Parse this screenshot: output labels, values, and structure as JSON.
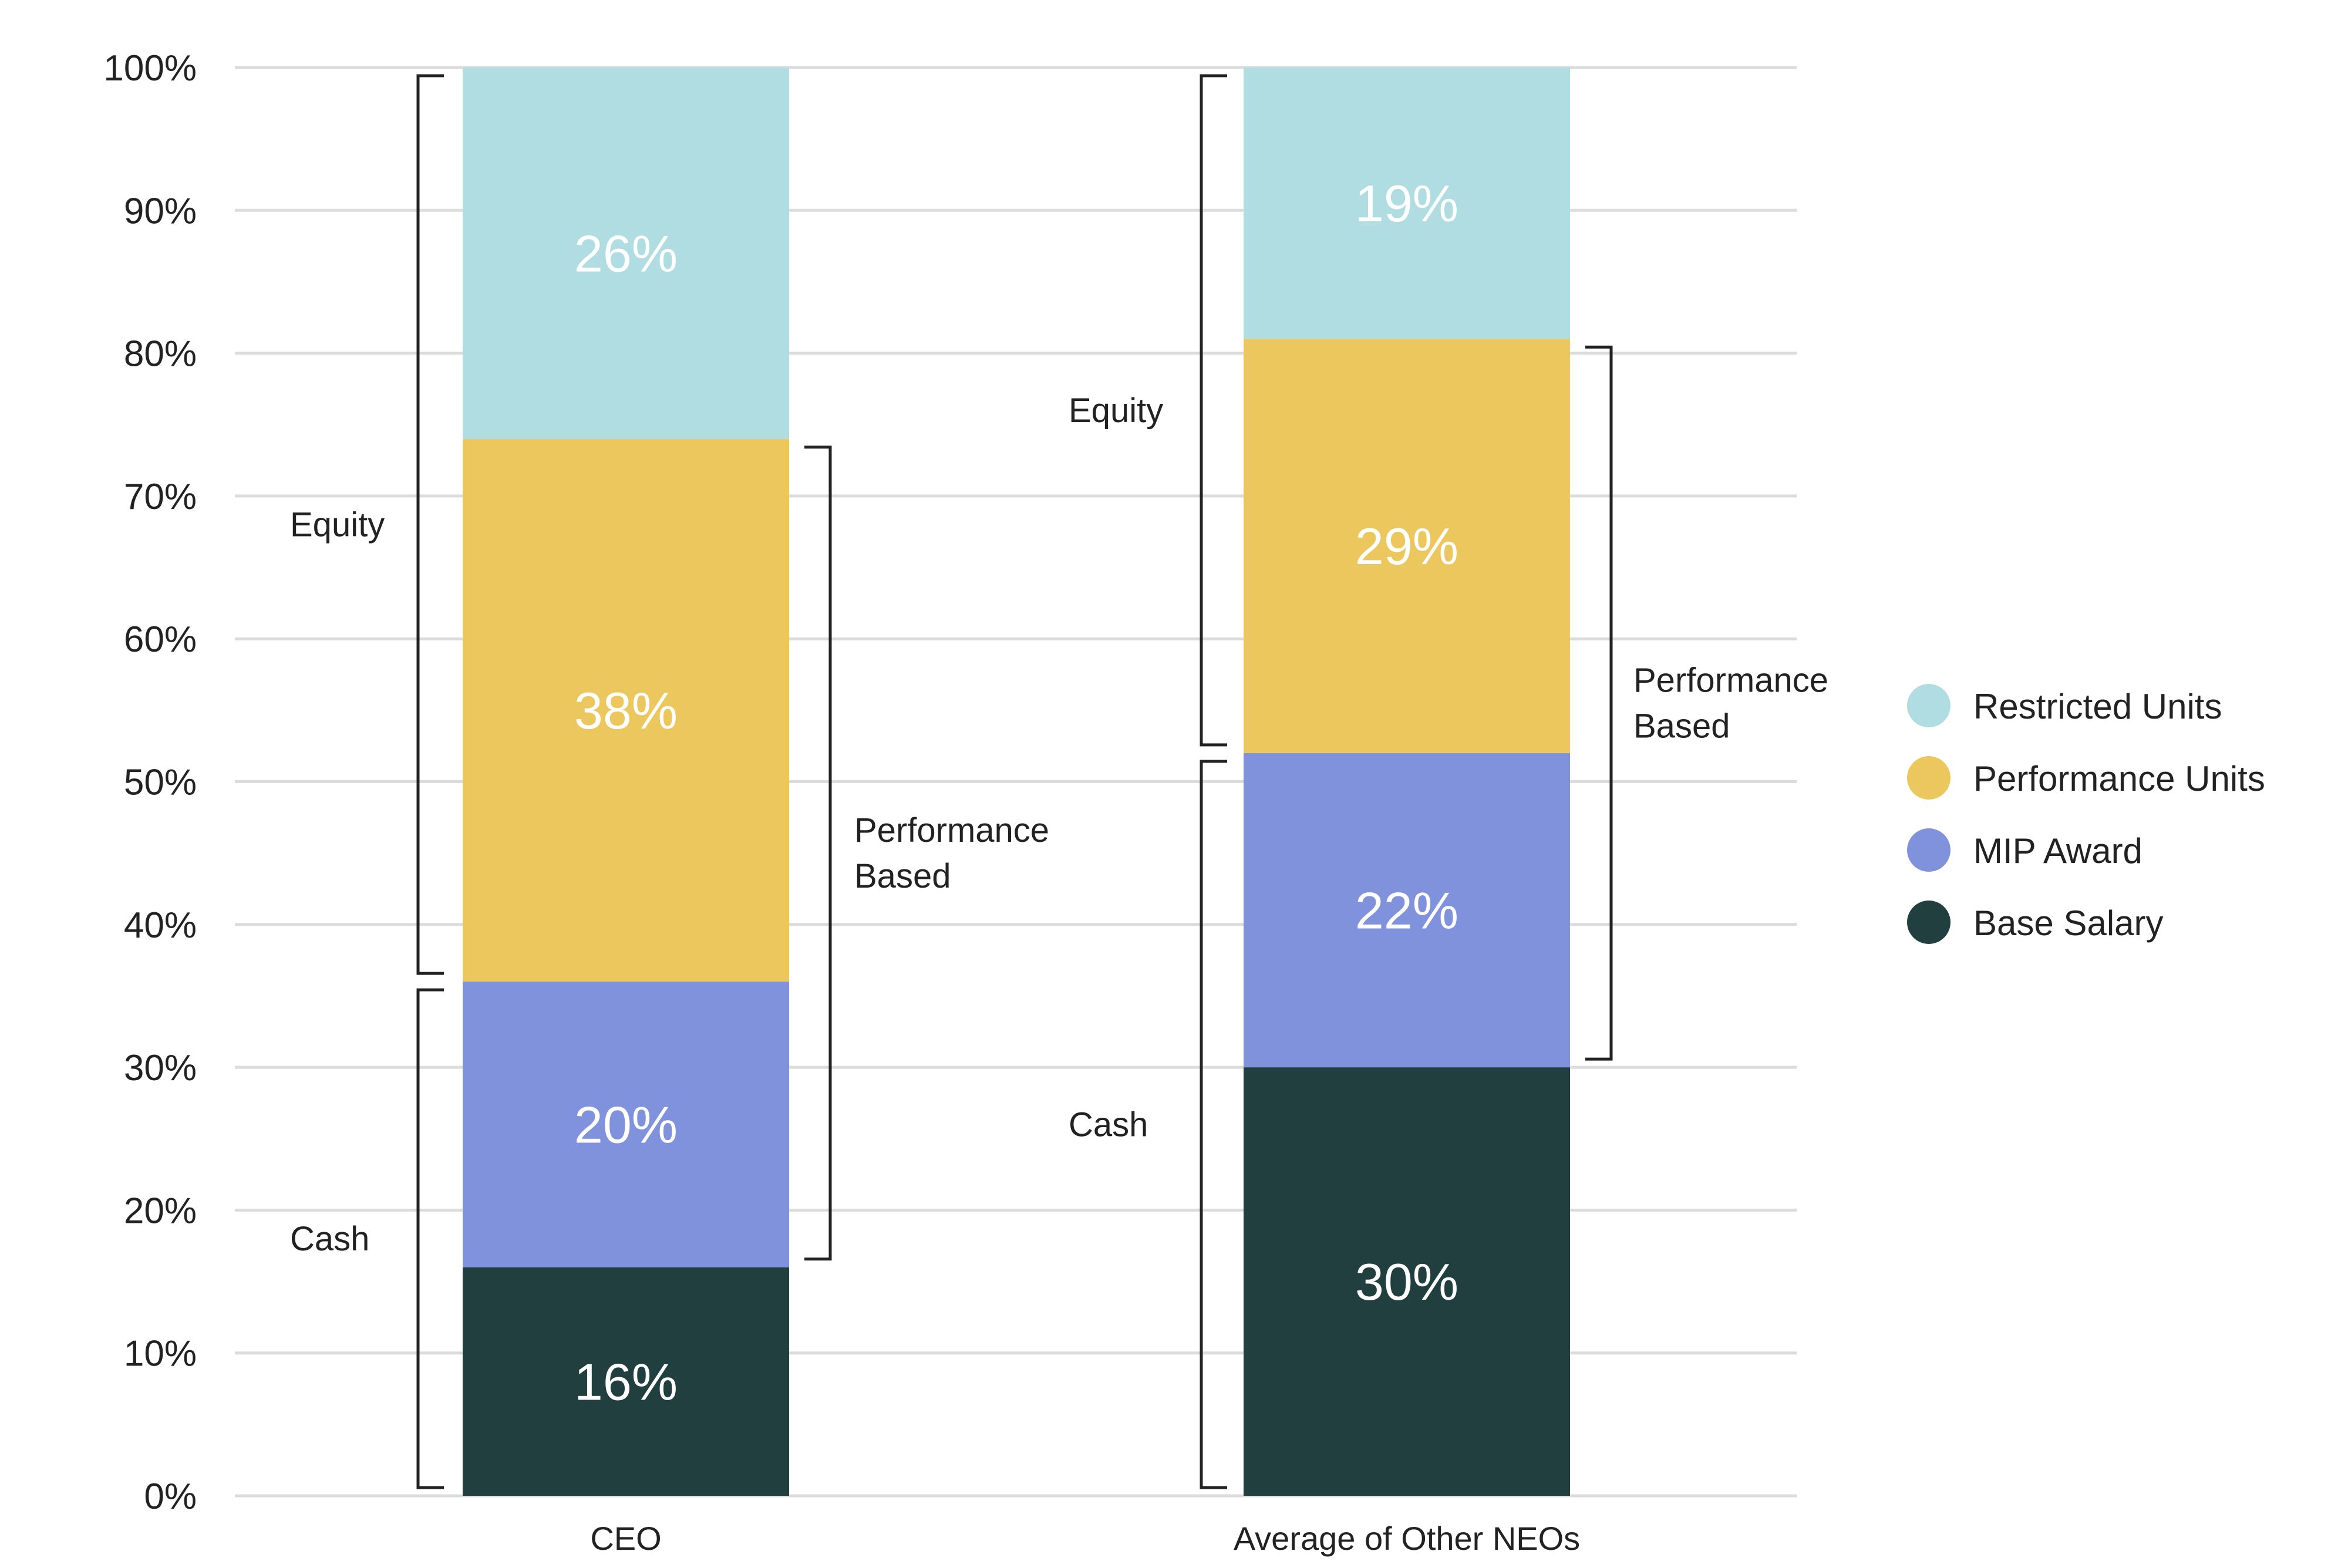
{
  "chart_data": {
    "type": "bar",
    "stacked": true,
    "categories": [
      "CEO",
      "Average of Other NEOs"
    ],
    "series": [
      {
        "name": "Base Salary",
        "values": [
          16,
          30
        ],
        "labels": [
          "16%",
          "30%"
        ],
        "color": "#213f3f"
      },
      {
        "name": "MIP Award",
        "values": [
          20,
          22
        ],
        "labels": [
          "20%",
          "22%"
        ],
        "color": "#8092dc"
      },
      {
        "name": "Performance Units",
        "values": [
          38,
          29
        ],
        "labels": [
          "38%",
          "29%"
        ],
        "color": "#ebc75d"
      },
      {
        "name": "Restricted Units",
        "values": [
          26,
          19
        ],
        "labels": [
          "26%",
          "19%"
        ],
        "color": "#b0dde1"
      }
    ],
    "y_ticks": [
      "0%",
      "10%",
      "20%",
      "30%",
      "40%",
      "50%",
      "60%",
      "70%",
      "80%",
      "90%",
      "100%"
    ],
    "ylim": [
      0,
      100
    ],
    "grid": true,
    "legend_position": "right",
    "legend_order": [
      "Restricted Units",
      "Performance Units",
      "MIP Award",
      "Base Salary"
    ],
    "brackets": [
      {
        "category": "CEO",
        "side": "left",
        "from": 0,
        "to": 36,
        "label": [
          "Cash"
        ]
      },
      {
        "category": "CEO",
        "side": "left",
        "from": 36,
        "to": 100,
        "label": [
          "Equity"
        ]
      },
      {
        "category": "CEO",
        "side": "right",
        "from": 16,
        "to": 74,
        "label": [
          "Performance",
          "Based"
        ]
      },
      {
        "category": "Average of Other NEOs",
        "side": "left",
        "from": 0,
        "to": 52,
        "label": [
          "Cash"
        ]
      },
      {
        "category": "Average of Other NEOs",
        "side": "left",
        "from": 52,
        "to": 100,
        "label": [
          "Equity"
        ]
      },
      {
        "category": "Average of Other NEOs",
        "side": "right",
        "from": 30,
        "to": 81,
        "label": [
          "Performance",
          "Based"
        ]
      }
    ]
  }
}
